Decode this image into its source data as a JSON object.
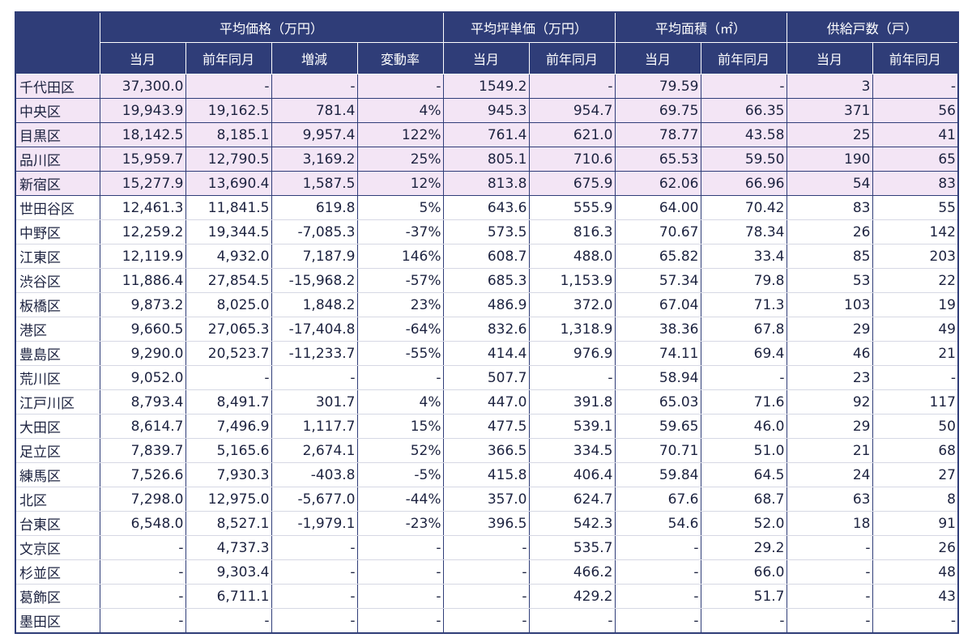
{
  "table": {
    "groups": [
      "平均価格（万円）",
      "平均坪単価（万円）",
      "平均面積（㎡）",
      "供給戸数（戸）"
    ],
    "subheaders": [
      "当月",
      "前年同月",
      "増減",
      "変動率",
      "当月",
      "前年同月",
      "当月",
      "前年同月",
      "当月",
      "前年同月"
    ],
    "rows": [
      [
        "千代田区",
        "37,300.0",
        "-",
        "-",
        "-",
        "1549.2",
        "-",
        "79.59",
        "-",
        "3",
        "-"
      ],
      [
        "中央区",
        "19,943.9",
        "19,162.5",
        "781.4",
        "4%",
        "945.3",
        "954.7",
        "69.75",
        "66.35",
        "371",
        "56"
      ],
      [
        "目黒区",
        "18,142.5",
        "8,185.1",
        "9,957.4",
        "122%",
        "761.4",
        "621.0",
        "78.77",
        "43.58",
        "25",
        "41"
      ],
      [
        "品川区",
        "15,959.7",
        "12,790.5",
        "3,169.2",
        "25%",
        "805.1",
        "710.6",
        "65.53",
        "59.50",
        "190",
        "65"
      ],
      [
        "新宿区",
        "15,277.9",
        "13,690.4",
        "1,587.5",
        "12%",
        "813.8",
        "675.9",
        "62.06",
        "66.96",
        "54",
        "83"
      ],
      [
        "世田谷区",
        "12,461.3",
        "11,841.5",
        "619.8",
        "5%",
        "643.6",
        "555.9",
        "64.00",
        "70.42",
        "83",
        "55"
      ],
      [
        "中野区",
        "12,259.2",
        "19,344.5",
        "-7,085.3",
        "-37%",
        "573.5",
        "816.3",
        "70.67",
        "78.34",
        "26",
        "142"
      ],
      [
        "江東区",
        "12,119.9",
        "4,932.0",
        "7,187.9",
        "146%",
        "608.7",
        "488.0",
        "65.82",
        "33.4",
        "85",
        "203"
      ],
      [
        "渋谷区",
        "11,886.4",
        "27,854.5",
        "-15,968.2",
        "-57%",
        "685.3",
        "1,153.9",
        "57.34",
        "79.8",
        "53",
        "22"
      ],
      [
        "板橋区",
        "9,873.2",
        "8,025.0",
        "1,848.2",
        "23%",
        "486.9",
        "372.0",
        "67.04",
        "71.3",
        "103",
        "19"
      ],
      [
        "港区",
        "9,660.5",
        "27,065.3",
        "-17,404.8",
        "-64%",
        "832.6",
        "1,318.9",
        "38.36",
        "67.8",
        "29",
        "49"
      ],
      [
        "豊島区",
        "9,290.0",
        "20,523.7",
        "-11,233.7",
        "-55%",
        "414.4",
        "976.9",
        "74.11",
        "69.4",
        "46",
        "21"
      ],
      [
        "荒川区",
        "9,052.0",
        "-",
        "-",
        "-",
        "507.7",
        "-",
        "58.94",
        "-",
        "23",
        "-"
      ],
      [
        "江戸川区",
        "8,793.4",
        "8,491.7",
        "301.7",
        "4%",
        "447.0",
        "391.8",
        "65.03",
        "71.6",
        "92",
        "117"
      ],
      [
        "大田区",
        "8,614.7",
        "7,496.9",
        "1,117.7",
        "15%",
        "477.5",
        "539.1",
        "59.65",
        "46.0",
        "29",
        "50"
      ],
      [
        "足立区",
        "7,839.7",
        "5,165.6",
        "2,674.1",
        "52%",
        "366.5",
        "334.5",
        "70.71",
        "51.0",
        "21",
        "68"
      ],
      [
        "練馬区",
        "7,526.6",
        "7,930.3",
        "-403.8",
        "-5%",
        "415.8",
        "406.4",
        "59.84",
        "64.5",
        "24",
        "27"
      ],
      [
        "北区",
        "7,298.0",
        "12,975.0",
        "-5,677.0",
        "-44%",
        "357.0",
        "624.7",
        "67.6",
        "68.7",
        "63",
        "8"
      ],
      [
        "台東区",
        "6,548.0",
        "8,527.1",
        "-1,979.1",
        "-23%",
        "396.5",
        "542.3",
        "54.6",
        "52.0",
        "18",
        "91"
      ],
      [
        "文京区",
        "-",
        "4,737.3",
        "-",
        "-",
        "-",
        "535.7",
        "-",
        "29.2",
        "-",
        "26"
      ],
      [
        "杉並区",
        "-",
        "9,303.4",
        "-",
        "-",
        "-",
        "466.2",
        "-",
        "66.0",
        "-",
        "48"
      ],
      [
        "葛飾区",
        "-",
        "6,711.1",
        "-",
        "-",
        "-",
        "429.2",
        "-",
        "51.7",
        "-",
        "43"
      ],
      [
        "墨田区",
        "-",
        "-",
        "-",
        "-",
        "-",
        "-",
        "-",
        "-",
        "-",
        "-"
      ]
    ]
  }
}
